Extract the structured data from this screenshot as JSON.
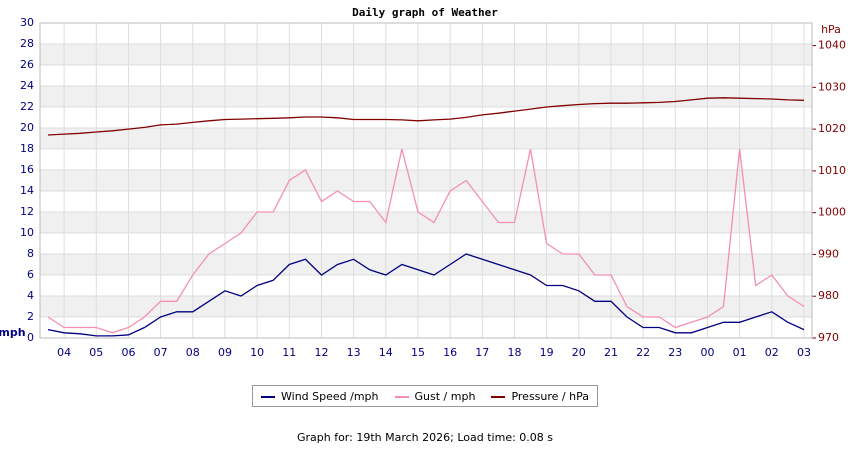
{
  "chart_data": {
    "type": "line",
    "title": "Daily graph of Weather",
    "y_label": "mph",
    "y2_label": "hPa",
    "footer": "Graph for: 19th March 2026; Load time: 0.08 s",
    "categories": [
      null,
      "04",
      null,
      "05",
      null,
      "06",
      null,
      "07",
      null,
      "08",
      null,
      "09",
      null,
      "10",
      null,
      "11",
      null,
      "12",
      null,
      "13",
      null,
      "14",
      null,
      "15",
      null,
      "16",
      null,
      "17",
      null,
      "18",
      null,
      "19",
      null,
      "20",
      null,
      "21",
      null,
      "22",
      null,
      "23",
      null,
      "00",
      null,
      "01",
      null,
      "02",
      null,
      "03"
    ],
    "series": [
      {
        "name": "Wind Speed /mph",
        "color": "#000080",
        "values": [
          0.8,
          0.5,
          0.4,
          0.2,
          0.2,
          0.3,
          1,
          2,
          2.5,
          2.5,
          3.5,
          4.5,
          4,
          5,
          5.5,
          7,
          7.5,
          6,
          7,
          7.5,
          6.5,
          6,
          7,
          6.5,
          6,
          7,
          8,
          7.5,
          7,
          6.5,
          6,
          5,
          5,
          4.5,
          3.5,
          3.5,
          2,
          1,
          1,
          0.5,
          0.5,
          1,
          1.5,
          1.5,
          2,
          2.5,
          1.5,
          0.8
        ]
      },
      {
        "name": "Gust / mph",
        "color": "#f58fb0",
        "values": [
          2,
          1,
          1,
          1,
          0.5,
          1,
          2,
          3.5,
          3.5,
          6,
          8,
          9,
          10,
          12,
          12,
          15,
          16,
          13,
          14,
          13,
          13,
          11,
          18,
          12,
          11,
          14,
          15,
          13,
          11,
          11,
          18,
          9,
          8,
          8,
          6,
          6,
          3,
          2,
          2,
          1,
          1.5,
          2,
          3,
          18,
          5,
          6,
          4,
          3
        ]
      },
      {
        "name": "Pressure / hPa",
        "color": "#800000",
        "axis": "y2",
        "values": [
          1018.6,
          1018.8,
          1019,
          1019.3,
          1019.6,
          1020,
          1020.4,
          1021,
          1021.2,
          1021.6,
          1022,
          1022.3,
          1022.4,
          1022.5,
          1022.6,
          1022.7,
          1022.9,
          1022.9,
          1022.7,
          1022.3,
          1022.3,
          1022.3,
          1022.2,
          1022,
          1022.2,
          1022.4,
          1022.8,
          1023.4,
          1023.8,
          1024.3,
          1024.8,
          1025.3,
          1025.6,
          1025.9,
          1026.1,
          1026.2,
          1026.2,
          1026.3,
          1026.4,
          1026.6,
          1027,
          1027.4,
          1027.5,
          1027.4,
          1027.3,
          1027.2,
          1027,
          1026.9
        ]
      }
    ],
    "ylim": [
      0,
      30
    ],
    "yticks": [
      0,
      2,
      4,
      6,
      8,
      10,
      12,
      14,
      16,
      18,
      20,
      22,
      24,
      26,
      28,
      30
    ],
    "y2lim": [
      970,
      1045.4
    ],
    "y2ticks": [
      970,
      980,
      990,
      1000,
      1010,
      1020,
      1030,
      1040
    ],
    "grid": true
  }
}
